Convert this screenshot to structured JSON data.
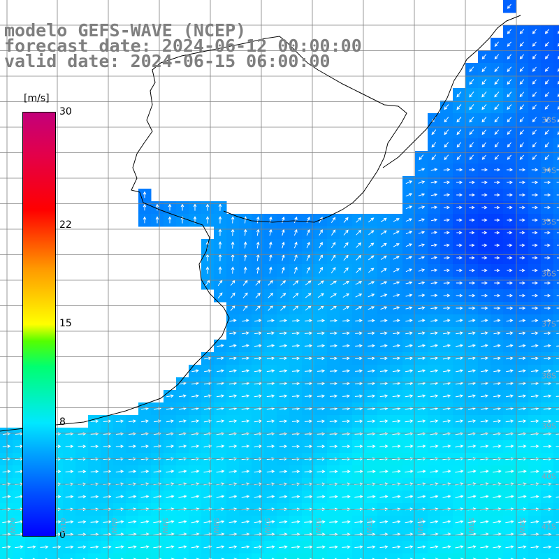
{
  "titles": {
    "line1": "modelo GEFS-WAVE (NCEP)",
    "line2": "forecast date: 2024-06-12 00:00:00",
    "line3": "valid date: 2024-06-15 06:00:00"
  },
  "colorbar": {
    "unit": "[m/s]",
    "ticks": [
      {
        "label": "30",
        "value": 30
      },
      {
        "label": "22",
        "value": 22
      },
      {
        "label": "15",
        "value": 15
      },
      {
        "label": "8",
        "value": 8
      },
      {
        "label": "0",
        "value": 0
      }
    ],
    "range": [
      0,
      30
    ],
    "colors": [
      "#0000ff",
      "#00a8ff",
      "#00e8ff",
      "#00ff70",
      "#ffff00",
      "#ff9a00",
      "#ff0000",
      "#c3007a"
    ]
  },
  "lat_labels": [
    "33S",
    "34S",
    "35S",
    "36S",
    "37S",
    "38S",
    "39S",
    "40S",
    "41S"
  ],
  "lon_labels": [
    "62W",
    "61W",
    "60W",
    "59W",
    "58W",
    "57W",
    "56W",
    "55W",
    "54W",
    "53W",
    "52W"
  ],
  "map_style": {
    "land_color": "#ffffff",
    "grid_color": "#808080",
    "coast_color": "#000000",
    "arrow_color": "#ffffff",
    "field": "wind speed",
    "vectors": "wind direction arrows"
  }
}
